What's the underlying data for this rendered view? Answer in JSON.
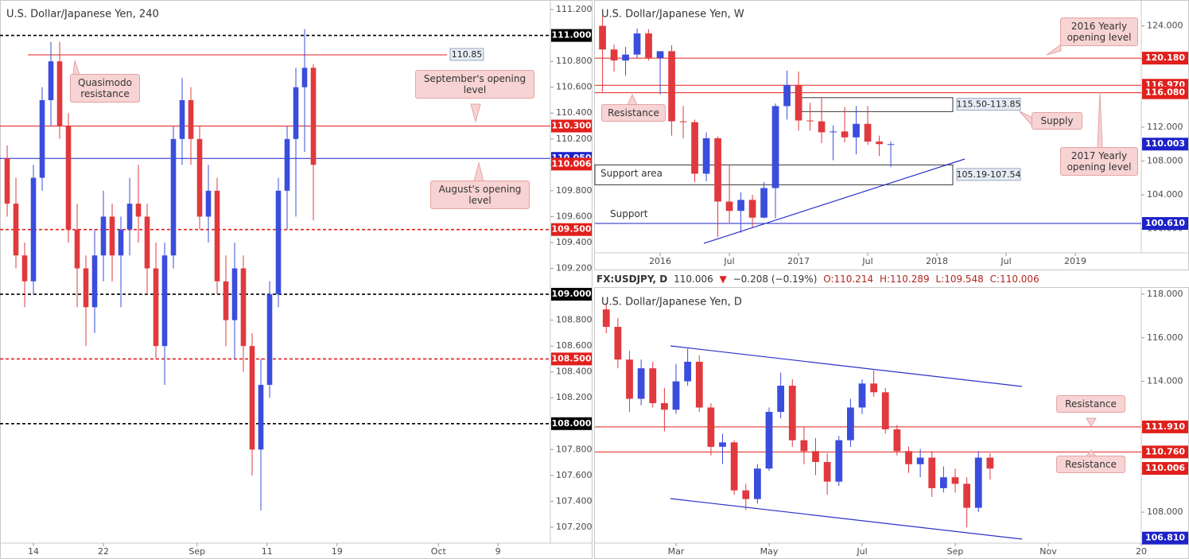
{
  "header": {
    "symbol": "FX:USDJPY, D",
    "last": "110.006",
    "arrow": "▼",
    "change": "−0.208 (−0.19%)",
    "open": "O:110.214",
    "high": "H:110.289",
    "low": "L:109.548",
    "close": "C:110.006"
  },
  "chart_data": [
    {
      "type": "candlestick",
      "title": "U.S. Dollar/Japanese Yen, 240",
      "up_color": "#3b4ddc",
      "down_color": "#e0393e",
      "xlim": [
        -3.82,
        59.09
      ],
      "ylim": [
        107.077,
        111.274
      ],
      "xticks": [
        {
          "value": 0,
          "label": "14"
        },
        {
          "value": 8,
          "label": "22"
        },
        {
          "value": 18.7,
          "label": "Sep"
        },
        {
          "value": 26.7,
          "label": "11"
        },
        {
          "value": 34.7,
          "label": "19"
        },
        {
          "value": 46.3,
          "label": "Oct"
        },
        {
          "value": 53.1,
          "label": "9"
        }
      ],
      "yticks": [
        {
          "value": 107.2,
          "label": "107.200"
        },
        {
          "value": 107.4,
          "label": "107.400"
        },
        {
          "value": 107.6,
          "label": "107.600"
        },
        {
          "value": 107.8,
          "label": "107.800"
        },
        {
          "value": 108.0,
          "label": "108.000"
        },
        {
          "value": 108.2,
          "label": "108.200"
        },
        {
          "value": 108.4,
          "label": "108.400"
        },
        {
          "value": 108.6,
          "label": "108.600"
        },
        {
          "value": 108.8,
          "label": "108.800"
        },
        {
          "value": 109.0,
          "label": "109.000"
        },
        {
          "value": 109.2,
          "label": "109.200"
        },
        {
          "value": 109.4,
          "label": "109.400"
        },
        {
          "value": 109.6,
          "label": "109.600"
        },
        {
          "value": 109.8,
          "label": "109.800"
        },
        {
          "value": 110.0,
          "label": "110.000"
        },
        {
          "value": 110.2,
          "label": "110.200"
        },
        {
          "value": 110.4,
          "label": "110.400"
        },
        {
          "value": 110.6,
          "label": "110.600"
        },
        {
          "value": 110.8,
          "label": "110.800"
        },
        {
          "value": 111.0,
          "label": "111.000"
        },
        {
          "value": 111.2,
          "label": "111.200"
        }
      ],
      "levels": [
        {
          "value": 111.0,
          "label": "111.000",
          "color": "#000000",
          "style": "dashed"
        },
        {
          "value": 110.3,
          "label": "110.300",
          "color": "#e0201c",
          "style": "solid"
        },
        {
          "value": 110.05,
          "label": "110.050",
          "color": "#1e22c8",
          "style": "solid"
        },
        {
          "value": 110.006,
          "label": "110.006",
          "color": "#e0201c",
          "style": "none"
        },
        {
          "value": 109.5,
          "label": "109.500",
          "color": "#e0201c",
          "style": "dashed"
        },
        {
          "value": 109.0,
          "label": "109.000",
          "color": "#000000",
          "style": "dashed"
        },
        {
          "value": 108.5,
          "label": "108.500",
          "color": "#e0201c",
          "style": "dashed"
        },
        {
          "value": 108.0,
          "label": "108.000",
          "color": "#000000",
          "style": "dashed"
        },
        {
          "value": 110.85,
          "label": "110.85",
          "color": "#e0201c",
          "style": "inline"
        }
      ],
      "annotations": [
        "Quasimodo resistance",
        "September's opening level",
        "August's opening level"
      ],
      "candles": {
        "x": [
          -3,
          -2,
          -1,
          0,
          1,
          2,
          3,
          4,
          5,
          6,
          7,
          8,
          9,
          10,
          11,
          12,
          13,
          14,
          15,
          16,
          17,
          18,
          19,
          20,
          21,
          22,
          23,
          24,
          25,
          26,
          27,
          28,
          29,
          30,
          31,
          32
        ],
        "open": [
          110.05,
          109.7,
          109.3,
          109.1,
          109.9,
          110.5,
          110.8,
          110.3,
          109.5,
          109.2,
          108.9,
          109.3,
          109.6,
          109.3,
          109.5,
          109.7,
          109.6,
          109.2,
          108.6,
          109.3,
          110.2,
          110.5,
          110.2,
          109.6,
          109.8,
          109.1,
          108.8,
          109.2,
          108.6,
          107.8,
          108.3,
          109.0,
          109.8,
          110.2,
          110.6,
          110.75
        ],
        "high": [
          110.15,
          109.9,
          109.4,
          110.0,
          110.6,
          110.95,
          110.95,
          110.4,
          109.7,
          109.3,
          109.5,
          109.8,
          109.7,
          109.6,
          109.9,
          110.0,
          109.7,
          109.4,
          109.4,
          110.3,
          110.67,
          110.6,
          110.3,
          110.0,
          109.9,
          109.3,
          109.4,
          109.3,
          108.7,
          108.5,
          109.1,
          109.9,
          110.3,
          110.75,
          111.05,
          110.78
        ],
        "low": [
          109.6,
          109.2,
          108.9,
          109.0,
          109.8,
          110.3,
          110.2,
          109.4,
          108.9,
          108.6,
          108.7,
          109.1,
          109.1,
          108.9,
          109.3,
          109.4,
          109.0,
          108.5,
          108.3,
          109.2,
          110.0,
          110.0,
          109.5,
          109.4,
          109.0,
          108.6,
          108.5,
          108.4,
          107.6,
          107.33,
          108.2,
          108.9,
          109.5,
          109.6,
          110.1,
          109.57
        ],
        "close": [
          109.7,
          109.3,
          109.1,
          109.9,
          110.5,
          110.8,
          110.3,
          109.5,
          109.2,
          108.9,
          109.3,
          109.6,
          109.3,
          109.5,
          109.7,
          109.6,
          109.2,
          108.6,
          109.3,
          110.2,
          110.5,
          110.2,
          109.6,
          109.8,
          109.1,
          108.8,
          109.2,
          108.6,
          107.8,
          108.3,
          109.0,
          109.8,
          110.2,
          110.6,
          110.75,
          110.0
        ]
      }
    },
    {
      "type": "candlestick",
      "title": "U.S. Dollar/Japanese Yen, W",
      "up_color": "#3b4ddc",
      "down_color": "#e0393e",
      "xlim": [
        -5.66,
        41.72
      ],
      "ylim": [
        97.13,
        127.06
      ],
      "xticks": [
        {
          "value": 0,
          "label": "2016"
        },
        {
          "value": 6,
          "label": "Jul"
        },
        {
          "value": 12,
          "label": "2017"
        },
        {
          "value": 18,
          "label": "Jul"
        },
        {
          "value": 24,
          "label": "2018"
        },
        {
          "value": 30,
          "label": "Jul"
        },
        {
          "value": 36,
          "label": "2019"
        }
      ],
      "yticks": [
        {
          "value": 100,
          "label": "100.000"
        },
        {
          "value": 104,
          "label": "104.000"
        },
        {
          "value": 108,
          "label": "108.000"
        },
        {
          "value": 112,
          "label": "112.000"
        },
        {
          "value": 116,
          "label": "116.000"
        },
        {
          "value": 120,
          "label": "120.000"
        },
        {
          "value": 124,
          "label": "124.000"
        }
      ],
      "levels": [
        {
          "value": 120.18,
          "label": "120.180",
          "color": "#e0201c",
          "style": "solid"
        },
        {
          "value": 116.97,
          "label": "116.970",
          "color": "#e0201c",
          "style": "solid"
        },
        {
          "value": 116.08,
          "label": "116.080",
          "color": "#e0201c",
          "style": "solid"
        },
        {
          "value": 110.003,
          "label": "110.003",
          "color": "#1e22c8",
          "style": "none"
        },
        {
          "value": 100.61,
          "label": "100.610",
          "color": "#1e22c8",
          "style": "solid"
        }
      ],
      "zones": [
        {
          "label": "115.50-113.85",
          "from": 113.85,
          "to": 115.5
        },
        {
          "label": "105.19-107.54",
          "from": 105.19,
          "to": 107.54
        }
      ],
      "annotations": [
        "2016 Yearly opening level",
        "Resistance",
        "Supply",
        "2017 Yearly opening level",
        "Support area",
        "Support"
      ],
      "candles": {
        "x": [
          -5,
          -4,
          -3,
          -2,
          -1,
          0,
          1,
          2,
          3,
          4,
          5,
          6,
          7,
          8,
          9,
          10,
          11,
          12,
          13,
          14,
          15,
          16,
          17,
          18,
          19,
          20
        ],
        "open": [
          124.0,
          121.2,
          119.9,
          120.6,
          123.1,
          120.2,
          121.0,
          112.7,
          112.6,
          106.5,
          110.7,
          103.2,
          102.1,
          103.4,
          101.3,
          104.8,
          114.5,
          117.0,
          112.8,
          112.7,
          111.4,
          111.5,
          110.8,
          112.4,
          110.3,
          110.0
        ],
        "high": [
          125.2,
          121.8,
          121.5,
          123.7,
          123.6,
          121.0,
          121.7,
          114.5,
          112.9,
          111.4,
          110.9,
          107.5,
          104.3,
          104.0,
          105.5,
          114.8,
          118.7,
          118.6,
          114.9,
          115.5,
          112.2,
          114.4,
          114.5,
          114.5,
          111.0,
          110.3
        ],
        "low": [
          116.2,
          118.6,
          118.1,
          120.2,
          119.9,
          115.9,
          111.0,
          110.7,
          105.5,
          105.6,
          99.0,
          100.7,
          99.5,
          100.1,
          101.2,
          101.2,
          112.9,
          111.6,
          111.6,
          110.1,
          108.1,
          110.2,
          108.8,
          109.9,
          108.6,
          107.3
        ],
        "close": [
          121.2,
          119.9,
          120.6,
          123.1,
          120.2,
          121.0,
          112.7,
          112.6,
          106.5,
          110.7,
          103.2,
          102.1,
          103.4,
          101.3,
          104.8,
          114.5,
          117.0,
          112.8,
          112.7,
          111.4,
          111.5,
          110.8,
          112.4,
          110.3,
          110.0,
          110.0
        ]
      }
    },
    {
      "type": "candlestick",
      "title": "U.S. Dollar/Japanese Yen, D",
      "up_color": "#3b4ddc",
      "down_color": "#e0393e",
      "xlim": [
        0.256,
        12.0
      ],
      "ylim": [
        106.58,
        118.29
      ],
      "xticks": [
        {
          "value": 2,
          "label": "Mar"
        },
        {
          "value": 4,
          "label": "May"
        },
        {
          "value": 6,
          "label": "Jul"
        },
        {
          "value": 8,
          "label": "Sep"
        },
        {
          "value": 10,
          "label": "Nov"
        },
        {
          "value": 12,
          "label": "20"
        }
      ],
      "yticks": [
        {
          "value": 108,
          "label": "108.000"
        },
        {
          "value": 110,
          "label": "110.000"
        },
        {
          "value": 112,
          "label": "112.000"
        },
        {
          "value": 114,
          "label": "114.000"
        },
        {
          "value": 116,
          "label": "116.000"
        },
        {
          "value": 118,
          "label": "118.000"
        }
      ],
      "levels": [
        {
          "value": 111.91,
          "label": "111.910",
          "color": "#e0201c",
          "style": "solid"
        },
        {
          "value": 110.76,
          "label": "110.760",
          "color": "#e0201c",
          "style": "solid"
        },
        {
          "value": 110.006,
          "label": "110.006",
          "color": "#e0201c",
          "style": "none"
        },
        {
          "value": 106.81,
          "label": "106.810",
          "color": "#1e22c8",
          "style": "none"
        }
      ],
      "annotations": [
        "Resistance",
        "Resistance"
      ],
      "candles": {
        "x": [
          0.5,
          0.75,
          1,
          1.25,
          1.5,
          1.75,
          2,
          2.25,
          2.5,
          2.75,
          3,
          3.25,
          3.5,
          3.75,
          4,
          4.25,
          4.5,
          4.75,
          5,
          5.25,
          5.5,
          5.75,
          6,
          6.25,
          6.5,
          6.75,
          7,
          7.25,
          7.5,
          7.75,
          8,
          8.25,
          8.5,
          8.75
        ],
        "open": [
          117.3,
          116.5,
          115.0,
          113.2,
          114.6,
          113.0,
          112.7,
          114.0,
          114.9,
          112.8,
          111.0,
          111.2,
          109.0,
          108.6,
          110.0,
          112.6,
          113.8,
          111.3,
          110.8,
          110.3,
          109.4,
          111.3,
          112.8,
          113.9,
          113.5,
          111.8,
          110.8,
          110.2,
          110.5,
          109.1,
          109.6,
          109.3,
          108.2,
          110.5
        ],
        "high": [
          117.6,
          116.9,
          115.4,
          115.0,
          114.9,
          113.7,
          114.8,
          115.5,
          115.2,
          113.0,
          111.6,
          111.3,
          109.3,
          110.2,
          112.8,
          114.4,
          114.1,
          111.9,
          111.4,
          110.7,
          111.5,
          113.2,
          114.1,
          114.5,
          113.7,
          112.0,
          111.0,
          110.9,
          110.8,
          110.1,
          110.0,
          109.6,
          110.8,
          110.7
        ],
        "low": [
          116.2,
          114.6,
          112.6,
          112.9,
          112.8,
          111.7,
          112.5,
          113.8,
          112.6,
          110.6,
          110.2,
          108.8,
          108.1,
          108.4,
          109.9,
          112.3,
          111.0,
          110.2,
          109.7,
          108.8,
          109.2,
          111.0,
          112.5,
          113.3,
          111.6,
          110.6,
          109.8,
          109.6,
          108.7,
          108.9,
          108.9,
          107.3,
          108.0,
          109.5
        ],
        "close": [
          116.5,
          115.0,
          113.2,
          114.6,
          113.0,
          112.7,
          114.0,
          114.9,
          112.8,
          111.0,
          111.2,
          109.0,
          108.6,
          110.0,
          112.6,
          113.8,
          111.3,
          110.8,
          110.3,
          109.4,
          111.3,
          112.8,
          113.9,
          113.5,
          111.8,
          110.8,
          110.2,
          110.5,
          109.1,
          109.6,
          109.3,
          108.2,
          110.5,
          110.0
        ]
      }
    }
  ]
}
